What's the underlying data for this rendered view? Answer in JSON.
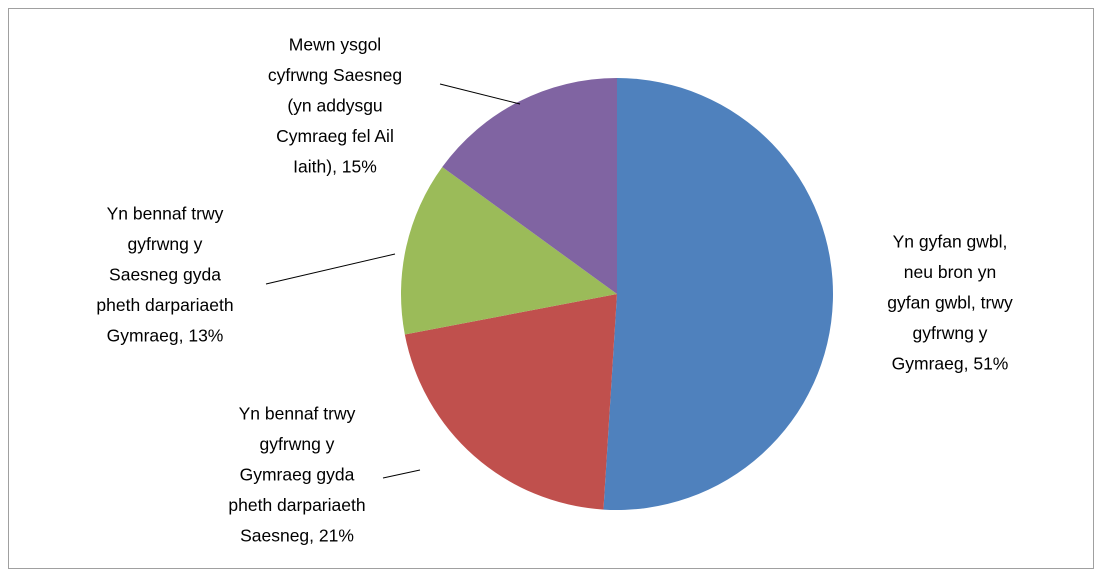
{
  "chart_data": {
    "type": "pie",
    "values": [
      51,
      21,
      13,
      15
    ],
    "value_labels": [
      [
        "Yn gyfan gwbl,",
        "neu bron yn",
        "gyfan gwbl, trwy",
        "gyfrwng y",
        "Gymraeg, 51%"
      ],
      [
        "Yn bennaf trwy",
        "gyfrwng y",
        "Gymraeg gyda",
        "pheth darpariaeth",
        "Saesneg, 21%"
      ],
      [
        "Yn bennaf trwy",
        "gyfrwng y",
        "Saesneg gyda",
        "pheth darpariaeth",
        "Gymraeg, 13%"
      ],
      [
        "Mewn ysgol",
        "cyfrwng Saesneg",
        "(yn addysgu",
        "Cymraeg fel Ail",
        "Iaith), 15%"
      ]
    ],
    "colors": [
      "#4f81bd",
      "#c0504d",
      "#9bbb59",
      "#8064a2"
    ]
  }
}
